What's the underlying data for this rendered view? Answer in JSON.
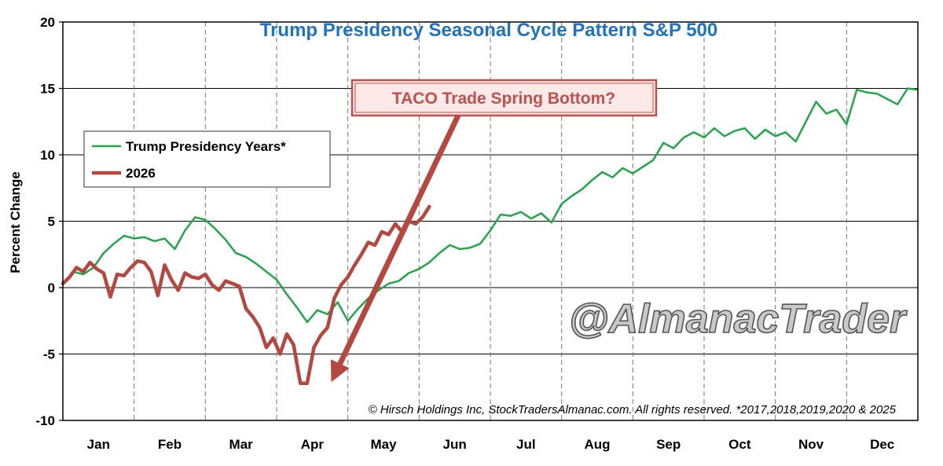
{
  "chart_data": {
    "type": "line",
    "title": "Trump Presidency Seasonal Cycle Pattern S&P 500",
    "ylabel": "Percent Change",
    "xlabel": "",
    "ylim": [
      -10,
      20
    ],
    "yticks": [
      20,
      15,
      10,
      5,
      0,
      -5,
      -10
    ],
    "x_unit": "trading day of year (0-252)",
    "xlim": [
      0,
      252
    ],
    "month_labels": [
      "Jan",
      "Feb",
      "Mar",
      "Apr",
      "May",
      "Jun",
      "Jul",
      "Aug",
      "Sep",
      "Oct",
      "Nov",
      "Dec"
    ],
    "grid": "vertical lines at month boundaries, horizontal lines at y ticks",
    "legend_placement": "left",
    "series": [
      {
        "name": "Trump Presidency Years*",
        "color": "#22a64a",
        "x": [
          0,
          3,
          6,
          9,
          12,
          15,
          18,
          21,
          24,
          27,
          30,
          33,
          36,
          39,
          42,
          45,
          48,
          51,
          54,
          57,
          60,
          63,
          66,
          69,
          72,
          75,
          78,
          81,
          84,
          87,
          90,
          93,
          96,
          99,
          102,
          105,
          108,
          111,
          114,
          117,
          120,
          123,
          126,
          129,
          132,
          135,
          138,
          141,
          144,
          147,
          150,
          153,
          156,
          159,
          162,
          165,
          168,
          171,
          174,
          177,
          180,
          183,
          186,
          189,
          192,
          195,
          198,
          201,
          204,
          207,
          210,
          213,
          216,
          219,
          222,
          225,
          228,
          231,
          234,
          237,
          240,
          243,
          246,
          249,
          252
        ],
        "values": [
          0.3,
          1.2,
          1.0,
          1.5,
          2.6,
          3.3,
          3.9,
          3.7,
          3.8,
          3.5,
          3.7,
          2.9,
          4.3,
          5.3,
          5.1,
          4.4,
          3.6,
          2.6,
          2.3,
          1.8,
          1.2,
          0.6,
          -0.5,
          -1.5,
          -2.6,
          -1.7,
          -2.0,
          -1.1,
          -2.5,
          -1.6,
          -0.8,
          -0.2,
          0.3,
          0.5,
          1.1,
          1.4,
          1.9,
          2.6,
          3.2,
          2.9,
          3.0,
          3.3,
          4.3,
          5.5,
          5.4,
          5.7,
          5.2,
          5.6,
          4.9,
          6.3,
          6.9,
          7.4,
          8.1,
          8.7,
          8.3,
          9.0,
          8.6,
          9.1,
          9.6,
          10.9,
          10.5,
          11.3,
          11.7,
          11.3,
          12.0,
          11.4,
          11.8,
          12.0,
          11.2,
          11.9,
          11.4,
          11.7,
          11.0,
          12.5,
          14.0,
          13.1,
          13.4,
          12.3,
          14.9,
          14.7,
          14.6,
          14.2,
          13.8,
          15.0,
          14.9
        ]
      },
      {
        "name": "2026",
        "color": "#b5473f",
        "x": [
          0,
          2,
          4,
          6,
          8,
          10,
          12,
          14,
          16,
          18,
          20,
          22,
          24,
          26,
          28,
          30,
          32,
          34,
          36,
          38,
          40,
          42,
          44,
          46,
          48,
          50,
          52,
          54,
          56,
          58,
          60,
          62,
          64,
          66,
          68,
          70,
          72,
          74,
          76,
          78,
          80,
          82,
          84,
          86,
          88,
          90,
          92,
          94,
          96,
          98,
          100,
          102,
          104,
          106,
          108
        ],
        "values": [
          0.3,
          0.8,
          1.5,
          1.2,
          1.9,
          1.4,
          1.1,
          -0.7,
          1.0,
          0.9,
          1.5,
          2.0,
          1.9,
          1.2,
          -0.6,
          1.7,
          0.6,
          -0.2,
          1.1,
          0.8,
          0.7,
          1.0,
          0.2,
          -0.2,
          0.5,
          0.3,
          0.1,
          -1.6,
          -2.2,
          -3.0,
          -4.5,
          -3.8,
          -5.0,
          -3.5,
          -4.3,
          -7.2,
          -7.2,
          -4.5,
          -3.6,
          -3.0,
          -0.8,
          0.2,
          0.8,
          1.7,
          2.5,
          3.4,
          3.2,
          4.2,
          4.0,
          4.8,
          4.2,
          5.0,
          4.8,
          5.3,
          6.1
        ]
      }
    ],
    "annotations": {
      "callout": "TACO Trade Spring Bottom?",
      "credit": "© Hirsch Holdings Inc, StockTradersAlmanac.com. All rights reserved. *2017,2018,2019,2020 & 2025",
      "watermark": "@AlmanacTrader",
      "arrow_target": {
        "x": 74,
        "y": -7.0
      }
    },
    "colors": {
      "title": "#1f73c4",
      "negative_tick": "#d11919",
      "callout_border": "#c0504d",
      "callout_fill": "#fce9e8",
      "arrow": "#b5473f"
    }
  }
}
